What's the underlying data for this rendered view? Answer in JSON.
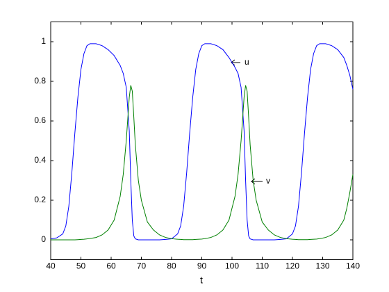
{
  "chart_data": {
    "type": "line",
    "xlabel": "t",
    "annotations": [
      "u",
      "v"
    ],
    "x": [
      40,
      42,
      44,
      45,
      46,
      47,
      48,
      49,
      50,
      51,
      52,
      53,
      55,
      57,
      59,
      61,
      63,
      64,
      65,
      66,
      66.5,
      67,
      67.5,
      68,
      69,
      70,
      72,
      74,
      76,
      78,
      80,
      82,
      83,
      84,
      85,
      86,
      87,
      88,
      89,
      90,
      91,
      93,
      95,
      97,
      99,
      101,
      102,
      103,
      104,
      104.5,
      105,
      105.5,
      106,
      107,
      108,
      110,
      112,
      114,
      116,
      118,
      120,
      121,
      122,
      123,
      124,
      125,
      126,
      127,
      128,
      129,
      131,
      133,
      135,
      137,
      138,
      139,
      140
    ],
    "series": [
      {
        "name": "u",
        "color": "#0000ff",
        "values": [
          0.005,
          0.01,
          0.03,
          0.07,
          0.17,
          0.34,
          0.54,
          0.72,
          0.86,
          0.94,
          0.98,
          0.99,
          0.99,
          0.98,
          0.96,
          0.93,
          0.88,
          0.84,
          0.77,
          0.55,
          0.3,
          0.1,
          0.02,
          0.005,
          0,
          0,
          0,
          0,
          0,
          0.002,
          0.005,
          0.03,
          0.07,
          0.17,
          0.34,
          0.54,
          0.72,
          0.86,
          0.94,
          0.98,
          0.99,
          0.99,
          0.98,
          0.96,
          0.92,
          0.87,
          0.84,
          0.77,
          0.55,
          0.3,
          0.1,
          0.02,
          0.005,
          0,
          0,
          0,
          0,
          0,
          0.002,
          0.005,
          0.03,
          0.07,
          0.17,
          0.34,
          0.54,
          0.72,
          0.86,
          0.94,
          0.98,
          0.99,
          0.99,
          0.98,
          0.96,
          0.92,
          0.88,
          0.83,
          0.76
        ]
      },
      {
        "name": "v",
        "color": "#008000",
        "values": [
          0,
          0,
          0,
          0,
          0,
          0,
          0,
          0.001,
          0.002,
          0.003,
          0.005,
          0.007,
          0.012,
          0.025,
          0.05,
          0.1,
          0.22,
          0.33,
          0.5,
          0.72,
          0.78,
          0.75,
          0.62,
          0.48,
          0.3,
          0.2,
          0.09,
          0.05,
          0.025,
          0.012,
          0.006,
          0.003,
          0.002,
          0.001,
          0.001,
          0.001,
          0.001,
          0.002,
          0.003,
          0.004,
          0.006,
          0.012,
          0.025,
          0.05,
          0.1,
          0.22,
          0.33,
          0.5,
          0.72,
          0.78,
          0.75,
          0.62,
          0.48,
          0.3,
          0.2,
          0.09,
          0.05,
          0.025,
          0.012,
          0.006,
          0.003,
          0.002,
          0.001,
          0.001,
          0.001,
          0.001,
          0.002,
          0.003,
          0.004,
          0.006,
          0.012,
          0.025,
          0.05,
          0.1,
          0.16,
          0.24,
          0.33
        ]
      }
    ],
    "xlim": [
      40,
      140
    ],
    "xticks": [
      40,
      50,
      60,
      70,
      80,
      90,
      100,
      110,
      120,
      130,
      140
    ],
    "ylim": [
      -0.1,
      1.1
    ],
    "yticks": [
      0,
      0.2,
      0.4,
      0.6,
      0.8,
      1
    ],
    "grid": false
  }
}
